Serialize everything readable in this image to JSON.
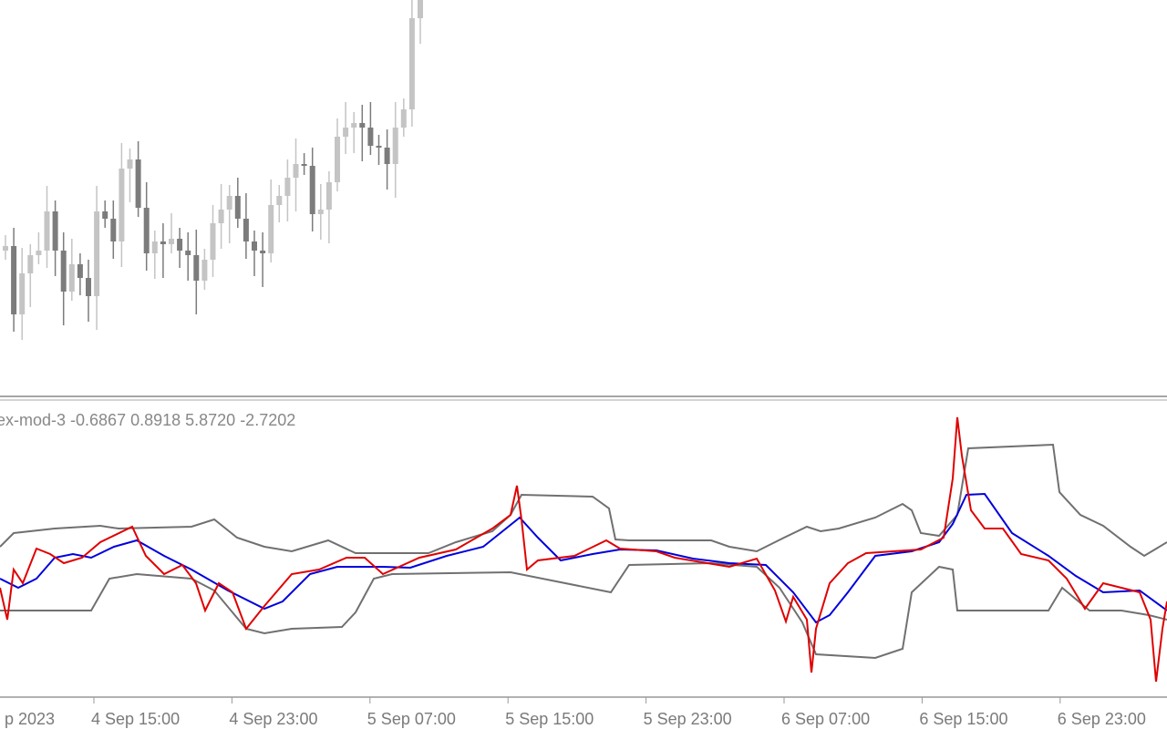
{
  "indicator_label": "ex-mod-3 -0.6867 0.8918 5.8720 -2.7202",
  "time_axis": [
    "p 2023",
    "4 Sep 15:00",
    "4 Sep 23:00",
    "5 Sep 07:00",
    "5 Sep 15:00",
    "5 Sep 23:00",
    "6 Sep 07:00",
    "6 Sep 15:00",
    "6 Sep 23:00"
  ]
}
